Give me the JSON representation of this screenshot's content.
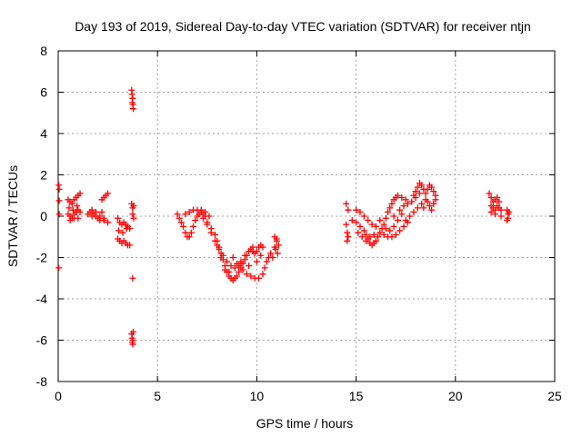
{
  "chart_data": {
    "type": "scatter",
    "title": "Day 193 of 2019, Sidereal Day-to-day VTEC variation (SDTVAR) for receiver ntjn",
    "xlabel": "GPS time / hours",
    "ylabel": "SDTVAR / TECUs",
    "xlim": [
      0,
      25
    ],
    "ylim": [
      -8,
      8
    ],
    "xticks": [
      0,
      5,
      10,
      15,
      20,
      25
    ],
    "yticks": [
      -8,
      -6,
      -4,
      -2,
      0,
      2,
      4,
      6,
      8
    ],
    "grid": true,
    "marker": "+",
    "color": "#ff0000",
    "series": [
      {
        "name": "SDTVAR",
        "points": [
          [
            0.03,
            1.5
          ],
          [
            0.05,
            1.3
          ],
          [
            0.05,
            0.75
          ],
          [
            0.05,
            0.1
          ],
          [
            0.03,
            -2.5
          ],
          [
            0.5,
            0.8
          ],
          [
            0.6,
            0.7
          ],
          [
            0.7,
            0.6
          ],
          [
            0.8,
            0.8
          ],
          [
            0.9,
            0.9
          ],
          [
            1.0,
            1.0
          ],
          [
            1.1,
            1.1
          ],
          [
            0.5,
            0.1
          ],
          [
            0.6,
            0.0
          ],
          [
            0.7,
            -0.1
          ],
          [
            0.8,
            0.1
          ],
          [
            0.9,
            0.2
          ],
          [
            1.0,
            0.3
          ],
          [
            1.1,
            0.2
          ],
          [
            0.6,
            -0.2
          ],
          [
            0.8,
            -0.1
          ],
          [
            1.0,
            -0.1
          ],
          [
            0.55,
            0.4
          ],
          [
            0.75,
            0.3
          ],
          [
            0.95,
            0.5
          ],
          [
            1.5,
            0.1
          ],
          [
            1.6,
            0.2
          ],
          [
            1.7,
            0.3
          ],
          [
            1.8,
            0.1
          ],
          [
            1.9,
            0.0
          ],
          [
            2.0,
            -0.1
          ],
          [
            2.1,
            0.0
          ],
          [
            2.2,
            0.2
          ],
          [
            2.3,
            -0.1
          ],
          [
            1.7,
            0.0
          ],
          [
            1.9,
            0.2
          ],
          [
            2.1,
            -0.2
          ],
          [
            2.2,
            0.8
          ],
          [
            2.3,
            0.9
          ],
          [
            2.4,
            1.0
          ],
          [
            2.5,
            1.1
          ],
          [
            2.3,
            -0.2
          ],
          [
            2.5,
            -0.3
          ],
          [
            3.0,
            -0.1
          ],
          [
            3.1,
            -0.3
          ],
          [
            3.2,
            -0.4
          ],
          [
            3.3,
            -0.3
          ],
          [
            3.4,
            -0.4
          ],
          [
            3.5,
            -0.5
          ],
          [
            3.6,
            -0.6
          ],
          [
            3.0,
            -1.1
          ],
          [
            3.1,
            -1.2
          ],
          [
            3.2,
            -1.3
          ],
          [
            3.3,
            -1.2
          ],
          [
            3.4,
            -1.3
          ],
          [
            3.5,
            -1.4
          ],
          [
            3.6,
            -1.4
          ],
          [
            3.05,
            -0.7
          ],
          [
            3.25,
            -0.8
          ],
          [
            3.45,
            -0.6
          ],
          [
            3.7,
            6.1
          ],
          [
            3.72,
            5.9
          ],
          [
            3.75,
            5.7
          ],
          [
            3.73,
            5.5
          ],
          [
            3.76,
            5.4
          ],
          [
            3.78,
            5.2
          ],
          [
            3.7,
            0.6
          ],
          [
            3.75,
            0.4
          ],
          [
            3.8,
            0.5
          ],
          [
            3.75,
            0.1
          ],
          [
            3.8,
            -0.1
          ],
          [
            3.75,
            -3.0
          ],
          [
            3.7,
            -5.7
          ],
          [
            3.72,
            -5.9
          ],
          [
            3.75,
            -6.0
          ],
          [
            3.73,
            -6.1
          ],
          [
            3.76,
            -6.2
          ],
          [
            3.78,
            -5.6
          ],
          [
            6.0,
            0.1
          ],
          [
            6.1,
            -0.1
          ],
          [
            6.2,
            -0.3
          ],
          [
            6.3,
            -0.5
          ],
          [
            6.4,
            -0.8
          ],
          [
            6.5,
            -1.0
          ],
          [
            6.6,
            -1.0
          ],
          [
            6.7,
            -0.8
          ],
          [
            6.8,
            -0.5
          ],
          [
            6.9,
            -0.2
          ],
          [
            7.0,
            0.0
          ],
          [
            7.1,
            0.1
          ],
          [
            7.2,
            0.2
          ],
          [
            7.3,
            0.1
          ],
          [
            7.4,
            0.0
          ],
          [
            6.4,
            0.1
          ],
          [
            6.6,
            0.2
          ],
          [
            6.8,
            0.3
          ],
          [
            7.0,
            0.3
          ],
          [
            7.2,
            0.3
          ],
          [
            7.4,
            0.2
          ],
          [
            7.6,
            0.0
          ],
          [
            7.5,
            -0.3
          ],
          [
            7.7,
            -0.6
          ],
          [
            7.9,
            -0.9
          ],
          [
            8.0,
            -1.2
          ],
          [
            8.1,
            -1.5
          ],
          [
            8.2,
            -1.8
          ],
          [
            8.3,
            -2.1
          ],
          [
            8.4,
            -2.4
          ],
          [
            8.5,
            -2.7
          ],
          [
            8.6,
            -2.9
          ],
          [
            8.7,
            -3.0
          ],
          [
            8.8,
            -3.1
          ],
          [
            8.9,
            -3.0
          ],
          [
            9.0,
            -2.9
          ],
          [
            9.1,
            -2.7
          ],
          [
            9.2,
            -2.5
          ],
          [
            9.3,
            -2.3
          ],
          [
            9.4,
            -2.1
          ],
          [
            9.5,
            -1.9
          ],
          [
            9.6,
            -1.7
          ],
          [
            9.7,
            -1.6
          ],
          [
            9.8,
            -1.7
          ],
          [
            9.9,
            -1.8
          ],
          [
            10.0,
            -1.7
          ],
          [
            10.1,
            -1.5
          ],
          [
            10.2,
            -1.4
          ],
          [
            10.3,
            -1.5
          ],
          [
            7.3,
            -0.1
          ],
          [
            7.5,
            -0.4
          ],
          [
            7.7,
            -0.8
          ],
          [
            7.9,
            -1.2
          ],
          [
            8.1,
            -1.6
          ],
          [
            8.3,
            -1.9
          ],
          [
            8.5,
            -2.2
          ],
          [
            8.7,
            -2.4
          ],
          [
            8.9,
            -2.5
          ],
          [
            9.1,
            -2.4
          ],
          [
            9.3,
            -2.6
          ],
          [
            9.5,
            -2.8
          ],
          [
            9.7,
            -2.9
          ],
          [
            9.9,
            -3.0
          ],
          [
            10.1,
            -3.0
          ],
          [
            10.3,
            -2.8
          ],
          [
            10.4,
            -2.5
          ],
          [
            10.5,
            -2.2
          ],
          [
            10.6,
            -2.0
          ],
          [
            10.7,
            -1.8
          ],
          [
            8.0,
            -1.4
          ],
          [
            8.2,
            -2.0
          ],
          [
            8.4,
            -2.6
          ],
          [
            8.6,
            -2.7
          ],
          [
            9.0,
            -2.3
          ],
          [
            9.4,
            -1.9
          ],
          [
            9.8,
            -1.5
          ],
          [
            10.2,
            -1.9
          ],
          [
            10.0,
            -2.2
          ],
          [
            9.6,
            -2.4
          ],
          [
            9.2,
            -2.2
          ],
          [
            8.8,
            -2.0
          ],
          [
            10.9,
            -1.0
          ],
          [
            11.0,
            -1.2
          ],
          [
            11.1,
            -1.4
          ],
          [
            10.95,
            -1.6
          ],
          [
            11.05,
            -1.8
          ],
          [
            10.8,
            -2.0
          ],
          [
            11.0,
            -1.1
          ],
          [
            10.9,
            -1.5
          ],
          [
            14.5,
            0.6
          ],
          [
            14.6,
            0.3
          ],
          [
            14.5,
            -0.4
          ],
          [
            14.55,
            -0.8
          ],
          [
            14.6,
            -1.0
          ],
          [
            14.55,
            -1.2
          ],
          [
            14.8,
            -0.2
          ],
          [
            15.0,
            -0.3
          ],
          [
            15.2,
            -0.5
          ],
          [
            15.4,
            -0.7
          ],
          [
            15.5,
            -0.9
          ],
          [
            15.6,
            -1.1
          ],
          [
            15.7,
            -1.3
          ],
          [
            15.8,
            -1.4
          ],
          [
            15.9,
            -1.3
          ],
          [
            16.0,
            -1.2
          ],
          [
            16.1,
            -1.0
          ],
          [
            16.2,
            -0.8
          ],
          [
            16.3,
            -0.6
          ],
          [
            15.0,
            0.3
          ],
          [
            15.2,
            0.2
          ],
          [
            15.4,
            0.0
          ],
          [
            15.6,
            -0.2
          ],
          [
            15.8,
            -0.4
          ],
          [
            16.0,
            -0.5
          ],
          [
            15.1,
            -0.8
          ],
          [
            15.3,
            -1.0
          ],
          [
            15.5,
            -1.2
          ],
          [
            15.7,
            -1.0
          ],
          [
            15.9,
            -0.9
          ],
          [
            16.4,
            -0.4
          ],
          [
            16.5,
            -0.1
          ],
          [
            16.6,
            0.2
          ],
          [
            16.7,
            0.4
          ],
          [
            16.8,
            0.6
          ],
          [
            16.9,
            0.8
          ],
          [
            17.0,
            0.9
          ],
          [
            17.1,
            1.0
          ],
          [
            16.5,
            -0.6
          ],
          [
            16.7,
            -0.7
          ],
          [
            16.9,
            -0.5
          ],
          [
            17.1,
            -0.2
          ],
          [
            17.3,
            0.1
          ],
          [
            16.6,
            -1.0
          ],
          [
            16.8,
            -1.0
          ],
          [
            17.0,
            -0.9
          ],
          [
            17.2,
            -0.7
          ],
          [
            17.4,
            -0.5
          ],
          [
            17.6,
            -0.3
          ],
          [
            17.2,
            0.3
          ],
          [
            17.4,
            0.5
          ],
          [
            17.6,
            0.6
          ],
          [
            17.8,
            0.7
          ],
          [
            18.0,
            0.9
          ],
          [
            18.2,
            1.1
          ],
          [
            17.5,
            -0.2
          ],
          [
            17.7,
            0.0
          ],
          [
            17.9,
            0.2
          ],
          [
            18.1,
            0.4
          ],
          [
            18.3,
            0.6
          ],
          [
            18.5,
            0.8
          ],
          [
            17.9,
            1.0
          ],
          [
            18.0,
            1.2
          ],
          [
            18.1,
            1.4
          ],
          [
            18.2,
            1.6
          ],
          [
            18.3,
            1.5
          ],
          [
            18.4,
            1.3
          ],
          [
            18.5,
            1.1
          ],
          [
            18.6,
            1.3
          ],
          [
            18.7,
            1.5
          ],
          [
            18.8,
            1.4
          ],
          [
            18.9,
            1.2
          ],
          [
            19.0,
            1.0
          ],
          [
            18.6,
            0.7
          ],
          [
            18.7,
            0.5
          ],
          [
            18.8,
            0.3
          ],
          [
            18.9,
            0.6
          ],
          [
            19.0,
            0.8
          ],
          [
            18.4,
            0.4
          ],
          [
            17.3,
            0.9
          ],
          [
            16.9,
            0.0
          ],
          [
            16.4,
            -0.9
          ],
          [
            16.2,
            -0.2
          ],
          [
            17.5,
            0.8
          ],
          [
            21.7,
            1.1
          ],
          [
            21.8,
            0.9
          ],
          [
            21.9,
            0.7
          ],
          [
            22.0,
            0.8
          ],
          [
            22.1,
            0.9
          ],
          [
            22.2,
            0.7
          ],
          [
            21.8,
            0.5
          ],
          [
            21.9,
            0.4
          ],
          [
            22.0,
            0.3
          ],
          [
            22.1,
            0.5
          ],
          [
            22.2,
            0.4
          ],
          [
            22.3,
            0.3
          ],
          [
            21.8,
            0.2
          ],
          [
            22.0,
            0.1
          ],
          [
            22.3,
            0.0
          ],
          [
            22.6,
            0.3
          ],
          [
            22.65,
            0.1
          ],
          [
            22.7,
            0.2
          ],
          [
            22.65,
            -0.1
          ],
          [
            22.6,
            -0.2
          ]
        ]
      }
    ]
  }
}
